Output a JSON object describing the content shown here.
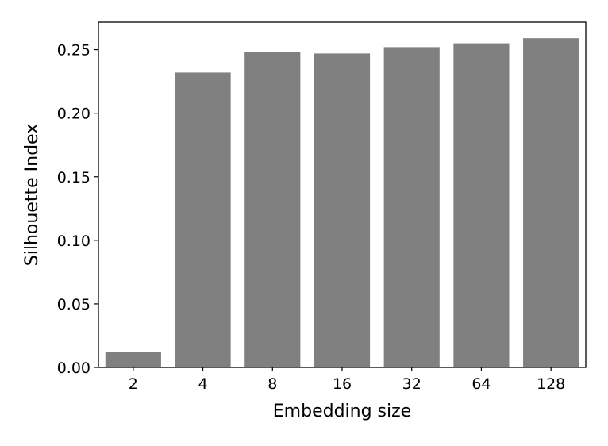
{
  "chart_data": {
    "type": "bar",
    "title": "",
    "xlabel": "Embedding size",
    "ylabel": "Silhouette Index",
    "categories": [
      "2",
      "4",
      "8",
      "16",
      "32",
      "64",
      "128"
    ],
    "values": [
      0.012,
      0.232,
      0.248,
      0.247,
      0.252,
      0.255,
      0.259
    ],
    "ylim": [
      0,
      0.2716
    ],
    "yticks": [
      "0.00",
      "0.05",
      "0.10",
      "0.15",
      "0.20",
      "0.25"
    ],
    "bar_color": "#808080",
    "grid": false,
    "legend": "none"
  }
}
